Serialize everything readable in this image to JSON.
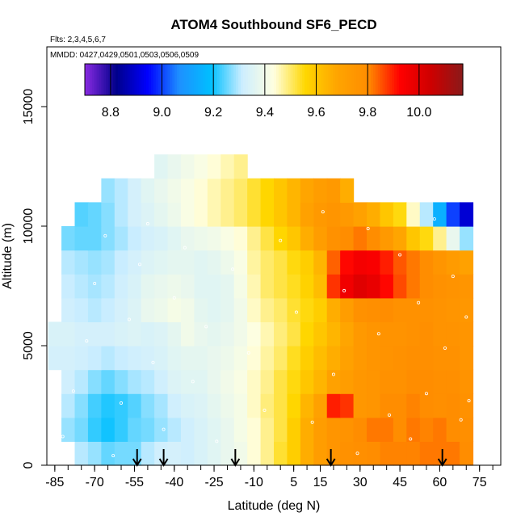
{
  "chart_data": {
    "type": "heatmap",
    "title": "ATOM4 Southbound SF6_PECD",
    "subtitle_flights": "Flts: 2,3,4,5,6,7",
    "subtitle_dates": "MMDD: 0427,0429,0501,0503,0506,0509",
    "xlabel": "Latitude (deg N)",
    "ylabel": "Altitude (m)",
    "xlim": [
      -88,
      83
    ],
    "ylim": [
      0,
      17500
    ],
    "x_ticks": [
      -85,
      -70,
      -55,
      -40,
      -25,
      -10,
      5,
      15,
      30,
      45,
      60,
      75
    ],
    "x_tick_labels": [
      "-85",
      "-70",
      "-55",
      "-40",
      "-25",
      "-10",
      "5",
      "15",
      "30",
      "45",
      "60",
      "75"
    ],
    "y_ticks": [
      0,
      5000,
      10000,
      15000
    ],
    "y_tick_labels": [
      "0",
      "5000",
      "10000",
      "15000"
    ],
    "colorbar": {
      "min": 8.7,
      "max": 10.17,
      "ticks": [
        8.8,
        9.0,
        9.2,
        9.4,
        9.6,
        9.8,
        10.0
      ],
      "tick_labels": [
        "8.8",
        "9.0",
        "9.2",
        "9.4",
        "9.6",
        "9.8",
        "10.0"
      ],
      "colors": [
        "#8a2be2",
        "#00008b",
        "#0000ff",
        "#1e90ff",
        "#00bfff",
        "#cdeeff",
        "#ffffe0",
        "#ffd700",
        "#ffa500",
        "#ff8c00",
        "#ff0000",
        "#cd0000",
        "#8b1a1a"
      ]
    },
    "latitude_bins": [
      -85,
      -80,
      -75,
      -70,
      -65,
      -60,
      -55,
      -50,
      -45,
      -40,
      -35,
      -30,
      -25,
      -20,
      -15,
      -10,
      -5,
      0,
      5,
      10,
      15,
      20,
      25,
      30,
      35,
      40,
      45,
      50,
      55,
      60,
      65,
      70
    ],
    "altitude_bins_m": [
      0,
      1000,
      2000,
      3000,
      4000,
      5000,
      6000,
      7000,
      8000,
      9000,
      10000,
      11000,
      12000
    ],
    "values": [
      [
        null,
        null,
        9.3,
        9.28,
        9.25,
        9.26,
        9.26,
        9.3,
        9.32,
        9.33,
        9.32,
        9.34,
        9.36,
        9.38,
        9.4,
        9.44,
        9.48,
        9.53,
        9.58,
        9.66,
        9.72,
        9.76,
        9.78,
        9.79,
        9.8,
        9.81,
        9.81,
        9.81,
        9.82,
        9.82,
        9.82,
        9.8
      ],
      [
        null,
        9.28,
        9.26,
        9.22,
        9.2,
        9.22,
        9.25,
        9.26,
        9.28,
        9.3,
        9.32,
        9.34,
        9.36,
        9.38,
        9.41,
        9.44,
        9.48,
        9.52,
        9.58,
        9.66,
        9.72,
        9.76,
        9.77,
        9.8,
        9.82,
        9.82,
        9.8,
        9.82,
        9.81,
        9.82,
        9.8,
        9.79
      ],
      [
        null,
        9.3,
        9.27,
        9.23,
        9.21,
        9.22,
        9.24,
        9.27,
        9.29,
        9.32,
        9.34,
        9.35,
        9.37,
        9.39,
        9.41,
        9.45,
        9.49,
        9.52,
        9.56,
        9.64,
        9.7,
        9.9,
        9.88,
        9.75,
        9.76,
        9.8,
        9.8,
        9.81,
        9.8,
        9.79,
        9.8,
        9.78
      ],
      [
        null,
        9.32,
        9.3,
        9.27,
        9.25,
        9.27,
        9.29,
        9.3,
        9.32,
        9.35,
        9.36,
        9.36,
        9.38,
        9.4,
        9.42,
        9.45,
        9.48,
        9.52,
        9.55,
        9.6,
        9.64,
        9.7,
        9.72,
        9.75,
        9.76,
        9.78,
        9.78,
        9.8,
        9.8,
        9.79,
        9.79,
        9.77
      ],
      [
        9.33,
        9.33,
        9.32,
        9.31,
        9.3,
        9.31,
        9.32,
        9.33,
        9.34,
        9.36,
        9.37,
        9.37,
        9.38,
        9.39,
        9.41,
        9.44,
        9.47,
        9.5,
        9.54,
        9.58,
        9.62,
        9.66,
        9.7,
        9.74,
        9.76,
        9.77,
        9.78,
        9.79,
        9.79,
        9.78,
        9.78,
        9.76
      ],
      [
        9.34,
        9.34,
        9.33,
        9.33,
        9.33,
        9.34,
        9.35,
        9.34,
        9.35,
        9.37,
        9.4,
        9.38,
        9.37,
        9.38,
        9.4,
        9.43,
        9.46,
        9.49,
        9.52,
        9.56,
        9.6,
        9.64,
        9.68,
        9.74,
        9.76,
        9.77,
        9.77,
        9.78,
        9.79,
        9.77,
        9.77,
        9.76
      ],
      [
        null,
        9.32,
        9.31,
        9.3,
        9.31,
        9.33,
        9.35,
        9.38,
        9.39,
        9.41,
        9.4,
        9.37,
        9.36,
        9.37,
        9.4,
        9.45,
        9.48,
        9.5,
        9.53,
        9.55,
        9.58,
        9.66,
        9.72,
        9.78,
        9.79,
        9.8,
        9.78,
        9.78,
        9.78,
        9.77,
        9.76,
        9.75
      ],
      [
        null,
        9.31,
        9.3,
        9.29,
        9.3,
        9.32,
        9.34,
        9.37,
        9.38,
        9.39,
        9.38,
        9.36,
        9.36,
        9.37,
        9.41,
        9.46,
        9.5,
        9.52,
        9.54,
        9.57,
        9.62,
        9.88,
        9.96,
        10.0,
        9.98,
        9.92,
        9.86,
        9.82,
        9.8,
        9.78,
        9.77,
        9.76
      ],
      [
        null,
        9.3,
        9.29,
        9.28,
        9.29,
        9.31,
        9.33,
        9.35,
        9.36,
        9.37,
        9.37,
        9.36,
        9.37,
        9.39,
        9.42,
        9.47,
        9.5,
        9.52,
        9.55,
        9.58,
        9.64,
        9.84,
        9.92,
        9.95,
        9.94,
        9.9,
        9.85,
        9.82,
        9.8,
        9.76,
        9.73,
        9.7
      ],
      [
        null,
        9.26,
        9.25,
        9.25,
        9.27,
        9.29,
        9.31,
        9.33,
        9.34,
        9.36,
        9.38,
        9.39,
        9.4,
        9.42,
        9.44,
        9.48,
        9.52,
        9.56,
        9.6,
        9.66,
        9.72,
        9.78,
        9.8,
        9.82,
        9.8,
        9.74,
        9.68,
        9.6,
        9.55,
        9.48,
        9.38,
        9.28
      ],
      [
        null,
        null,
        9.24,
        9.25,
        9.27,
        9.3,
        9.33,
        9.35,
        9.37,
        9.39,
        9.42,
        9.44,
        9.46,
        9.48,
        9.5,
        9.53,
        9.56,
        9.6,
        9.64,
        9.7,
        9.74,
        9.76,
        9.74,
        9.7,
        9.66,
        9.6,
        9.55,
        9.45,
        9.3,
        9.15,
        9.0,
        8.9
      ],
      [
        null,
        null,
        null,
        null,
        9.28,
        9.3,
        9.33,
        9.36,
        9.38,
        9.4,
        9.42,
        9.44,
        9.46,
        9.48,
        9.5,
        9.53,
        9.56,
        9.6,
        9.64,
        9.68,
        9.72,
        9.74,
        9.66,
        null,
        null,
        null,
        null,
        null,
        null,
        null,
        null,
        null
      ],
      [
        null,
        null,
        null,
        null,
        null,
        null,
        null,
        null,
        9.36,
        9.38,
        9.4,
        9.42,
        9.44,
        9.46,
        9.48,
        null,
        null,
        null,
        null,
        null,
        null,
        null,
        null,
        null,
        null,
        null,
        null,
        null,
        null,
        null,
        null,
        null
      ]
    ],
    "observation_points_lat_alt": [
      [
        -82,
        1200
      ],
      [
        -78,
        3100
      ],
      [
        -73,
        5200
      ],
      [
        -70,
        7600
      ],
      [
        -66,
        9600
      ],
      [
        -63,
        400
      ],
      [
        -60,
        2600
      ],
      [
        -57,
        6100
      ],
      [
        -53,
        8400
      ],
      [
        -50,
        10100
      ],
      [
        -48,
        4300
      ],
      [
        -44,
        1500
      ],
      [
        -40,
        7000
      ],
      [
        -36,
        9100
      ],
      [
        -33,
        3500
      ],
      [
        -28,
        5800
      ],
      [
        -24,
        1000
      ],
      [
        -18,
        8200
      ],
      [
        -12,
        4700
      ],
      [
        -6,
        2300
      ],
      [
        0,
        9400
      ],
      [
        6,
        6400
      ],
      [
        12,
        1800
      ],
      [
        16,
        10600
      ],
      [
        20,
        3800
      ],
      [
        24,
        7300
      ],
      [
        29,
        500
      ],
      [
        33,
        9900
      ],
      [
        37,
        5500
      ],
      [
        41,
        2100
      ],
      [
        45,
        8800
      ],
      [
        49,
        1100
      ],
      [
        52,
        6800
      ],
      [
        55,
        3000
      ],
      [
        58,
        10300
      ],
      [
        62,
        4900
      ],
      [
        65,
        7900
      ],
      [
        68,
        1900
      ],
      [
        70,
        6200
      ],
      [
        71,
        2700
      ]
    ],
    "arrow_latitudes": [
      -54,
      -44,
      -17,
      19,
      61
    ]
  }
}
